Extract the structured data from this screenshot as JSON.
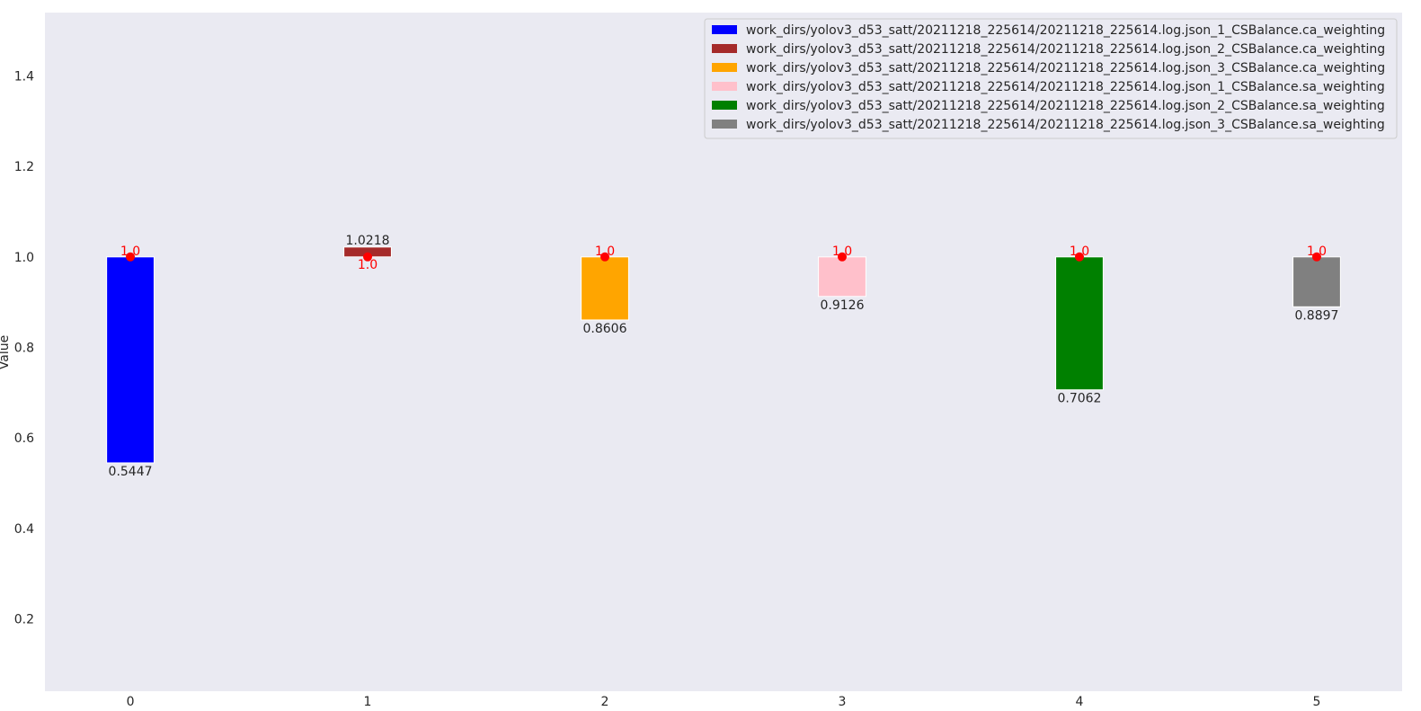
{
  "chart_data": {
    "type": "bar",
    "xlabel": "",
    "ylabel": "Value",
    "ylim": [
      0.04,
      1.54
    ],
    "xlim": [
      -0.36,
      5.36
    ],
    "yticks": [
      0.2,
      0.4,
      0.6,
      0.8,
      1.0,
      1.2,
      1.4
    ],
    "categories": [
      "0",
      "1",
      "2",
      "3",
      "4",
      "5"
    ],
    "grid": false,
    "legend_position": "top-right",
    "background": "#eaeaf2",
    "reference_value": 1.0,
    "reference_label": "1.0",
    "reference_color": "#ff0000",
    "series": [
      {
        "name": "work_dirs/yolov3_d53_satt/20211218_225614/20211218_225614.log.json_1_CSBalance.ca_weighting",
        "x": 0,
        "value": 0.5447,
        "label": "0.5447",
        "color": "#0000ff"
      },
      {
        "name": "work_dirs/yolov3_d53_satt/20211218_225614/20211218_225614.log.json_2_CSBalance.ca_weighting",
        "x": 1,
        "value": 1.0218,
        "label": "1.0218",
        "color": "#a52a2a"
      },
      {
        "name": "work_dirs/yolov3_d53_satt/20211218_225614/20211218_225614.log.json_3_CSBalance.ca_weighting",
        "x": 2,
        "value": 0.8606,
        "label": "0.8606",
        "color": "#ffa500"
      },
      {
        "name": "work_dirs/yolov3_d53_satt/20211218_225614/20211218_225614.log.json_1_CSBalance.sa_weighting",
        "x": 3,
        "value": 0.9126,
        "label": "0.9126",
        "color": "#ffc0cb"
      },
      {
        "name": "work_dirs/yolov3_d53_satt/20211218_225614/20211218_225614.log.json_2_CSBalance.sa_weighting",
        "x": 4,
        "value": 0.7062,
        "label": "0.7062",
        "color": "#008000"
      },
      {
        "name": "work_dirs/yolov3_d53_satt/20211218_225614/20211218_225614.log.json_3_CSBalance.sa_weighting",
        "x": 5,
        "value": 0.8897,
        "label": "0.8897",
        "color": "#808080"
      }
    ]
  }
}
